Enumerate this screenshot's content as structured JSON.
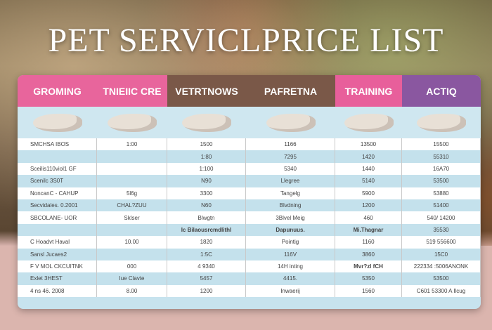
{
  "title": "PET SERVICLPRICE LIST",
  "columns": [
    {
      "label": "GROMING",
      "color": "#e8659c"
    },
    {
      "label": "TNIEIIC CRE",
      "color": "#e8659c"
    },
    {
      "label": "VETRTNOWS",
      "color": "#7a5848"
    },
    {
      "label": "PAFRETNA",
      "color": "#7a5848"
    },
    {
      "label": "TRAINING",
      "color": "#e85f9b"
    },
    {
      "label": "ACTIQ",
      "color": "#8a57a0"
    }
  ],
  "rows": [
    [
      "SMCHSA IBOS",
      "1:00",
      "1500",
      "1166",
      "13500",
      "15500"
    ],
    [
      "",
      "",
      "1:80",
      "7295",
      "1420",
      "55310"
    ],
    [
      "Sceilis110viol1 GF",
      "",
      "1:100",
      "5340",
      "1440",
      "16A70"
    ],
    [
      "Scenilc 3S0T",
      "",
      "N90",
      "Llegree",
      "5140",
      "53500"
    ],
    [
      "NoncanC - CAHUP",
      "5l6g",
      "3300",
      "Tangelg",
      "5900",
      "53880"
    ],
    [
      "Secvidales. 0.2001",
      "CHAL?ZUU",
      "N60",
      "Blvdning",
      "1200",
      "51400"
    ],
    [
      "SBCOLANE- UOR",
      "Sklser",
      "Blwgtn",
      "3Blvel Meig",
      "460",
      "540/ 14200"
    ],
    [
      "",
      "",
      "Ic Bilaousrcmdlithl",
      "Dapunuus.",
      "Mi.Thagnar",
      "35530"
    ],
    [
      "C Hoadvt Haval",
      "10.00",
      "1820",
      "Pointig",
      "1160",
      "519 556600"
    ],
    [
      "Sansl Jucaes2",
      "",
      "1:5C",
      "116V",
      "3860",
      "15C0"
    ],
    [
      "F V MOL CKCUITNK",
      "000",
      "4 9340",
      "14H inting",
      "Mvr?zl fCH",
      "222334 :5006ANONK"
    ],
    [
      "Exlet 3HEST",
      "Iue Clavte",
      "5457",
      "4415.",
      "5350",
      "53500"
    ],
    [
      "4 ns 46. 2008",
      "8.00",
      "1200",
      "Inwaerij",
      "1560",
      "C601 53300 A Ilcug"
    ]
  ]
}
